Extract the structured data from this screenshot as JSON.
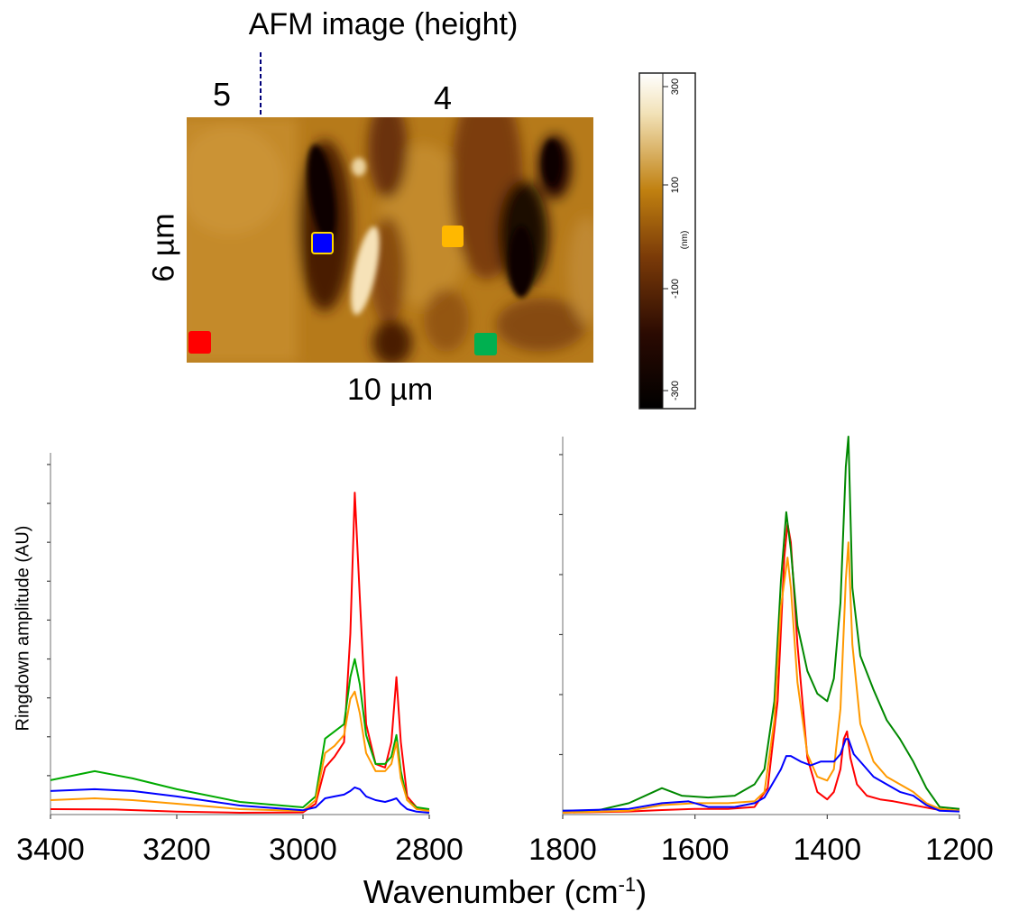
{
  "afm": {
    "title": "AFM image (height)",
    "region_left": "5",
    "region_right": "4",
    "width_label": "10 µm",
    "height_label": "6 µm",
    "markers": [
      {
        "name": "blue-marker",
        "color": "#0000ff",
        "outline": "#ffd700"
      },
      {
        "name": "orange-marker",
        "color": "#ffb800",
        "outline": ""
      },
      {
        "name": "red-marker",
        "color": "#ff0000",
        "outline": ""
      },
      {
        "name": "green-marker",
        "color": "#00b050",
        "outline": ""
      }
    ]
  },
  "colorbar": {
    "ticks": [
      "300",
      "100",
      "-100",
      "-300"
    ],
    "unit": "(nm)"
  },
  "chart_data": [
    {
      "type": "line",
      "title": "",
      "xlabel": "Wavenumber (cm-1)",
      "ylabel": "Ringdown amplitude (AU)",
      "xlim": [
        3400,
        2800
      ],
      "ylim": [
        0,
        1.0
      ],
      "x_ticks": [
        "3400",
        "3200",
        "3000",
        "2800"
      ],
      "series": [
        {
          "color": "#ff0000",
          "points": [
            [
              3400,
              0.015
            ],
            [
              3300,
              0.014
            ],
            [
              3200,
              0.008
            ],
            [
              3100,
              0.005
            ],
            [
              3000,
              0.006
            ],
            [
              2980,
              0.03
            ],
            [
              2965,
              0.13
            ],
            [
              2950,
              0.16
            ],
            [
              2935,
              0.2
            ],
            [
              2925,
              0.5
            ],
            [
              2918,
              0.89
            ],
            [
              2910,
              0.6
            ],
            [
              2900,
              0.25
            ],
            [
              2885,
              0.14
            ],
            [
              2870,
              0.13
            ],
            [
              2860,
              0.2
            ],
            [
              2852,
              0.38
            ],
            [
              2845,
              0.2
            ],
            [
              2835,
              0.05
            ],
            [
              2820,
              0.02
            ],
            [
              2800,
              0.01
            ]
          ]
        },
        {
          "color": "#00aa00",
          "points": [
            [
              3400,
              0.095
            ],
            [
              3330,
              0.12
            ],
            [
              3270,
              0.1
            ],
            [
              3200,
              0.07
            ],
            [
              3100,
              0.035
            ],
            [
              3000,
              0.02
            ],
            [
              2980,
              0.05
            ],
            [
              2965,
              0.21
            ],
            [
              2950,
              0.23
            ],
            [
              2935,
              0.25
            ],
            [
              2925,
              0.38
            ],
            [
              2918,
              0.43
            ],
            [
              2910,
              0.36
            ],
            [
              2900,
              0.22
            ],
            [
              2885,
              0.14
            ],
            [
              2870,
              0.14
            ],
            [
              2860,
              0.16
            ],
            [
              2852,
              0.22
            ],
            [
              2845,
              0.12
            ],
            [
              2835,
              0.04
            ],
            [
              2820,
              0.02
            ],
            [
              2800,
              0.015
            ]
          ]
        },
        {
          "color": "#ff9900",
          "points": [
            [
              3400,
              0.04
            ],
            [
              3330,
              0.045
            ],
            [
              3270,
              0.04
            ],
            [
              3200,
              0.03
            ],
            [
              3100,
              0.015
            ],
            [
              3000,
              0.01
            ],
            [
              2980,
              0.04
            ],
            [
              2965,
              0.17
            ],
            [
              2950,
              0.19
            ],
            [
              2935,
              0.22
            ],
            [
              2925,
              0.32
            ],
            [
              2918,
              0.34
            ],
            [
              2910,
              0.28
            ],
            [
              2900,
              0.17
            ],
            [
              2885,
              0.12
            ],
            [
              2870,
              0.12
            ],
            [
              2860,
              0.14
            ],
            [
              2852,
              0.2
            ],
            [
              2845,
              0.1
            ],
            [
              2835,
              0.04
            ],
            [
              2820,
              0.015
            ],
            [
              2800,
              0.01
            ]
          ]
        },
        {
          "color": "#0000ff",
          "points": [
            [
              3400,
              0.065
            ],
            [
              3330,
              0.07
            ],
            [
              3270,
              0.065
            ],
            [
              3200,
              0.05
            ],
            [
              3100,
              0.025
            ],
            [
              3000,
              0.012
            ],
            [
              2980,
              0.02
            ],
            [
              2965,
              0.045
            ],
            [
              2950,
              0.05
            ],
            [
              2935,
              0.055
            ],
            [
              2925,
              0.065
            ],
            [
              2918,
              0.075
            ],
            [
              2910,
              0.07
            ],
            [
              2900,
              0.05
            ],
            [
              2885,
              0.04
            ],
            [
              2870,
              0.035
            ],
            [
              2860,
              0.04
            ],
            [
              2852,
              0.045
            ],
            [
              2845,
              0.03
            ],
            [
              2835,
              0.015
            ],
            [
              2820,
              0.008
            ],
            [
              2800,
              0.005
            ]
          ]
        }
      ]
    },
    {
      "type": "line",
      "title": "",
      "xlabel": "Wavenumber (cm-1)",
      "ylabel": "",
      "xlim": [
        1800,
        1200
      ],
      "ylim": [
        0,
        1.0
      ],
      "x_ticks": [
        "1800",
        "1600",
        "1400",
        "1200"
      ],
      "series": [
        {
          "color": "#ff0000",
          "points": [
            [
              1800,
              0.005
            ],
            [
              1700,
              0.008
            ],
            [
              1650,
              0.012
            ],
            [
              1600,
              0.015
            ],
            [
              1550,
              0.015
            ],
            [
              1510,
              0.02
            ],
            [
              1490,
              0.07
            ],
            [
              1475,
              0.3
            ],
            [
              1465,
              0.68
            ],
            [
              1460,
              0.77
            ],
            [
              1455,
              0.72
            ],
            [
              1445,
              0.45
            ],
            [
              1430,
              0.15
            ],
            [
              1415,
              0.06
            ],
            [
              1400,
              0.04
            ],
            [
              1390,
              0.06
            ],
            [
              1380,
              0.12
            ],
            [
              1375,
              0.2
            ],
            [
              1370,
              0.22
            ],
            [
              1365,
              0.15
            ],
            [
              1355,
              0.08
            ],
            [
              1340,
              0.05
            ],
            [
              1320,
              0.04
            ],
            [
              1300,
              0.035
            ],
            [
              1270,
              0.025
            ],
            [
              1240,
              0.015
            ],
            [
              1220,
              0.01
            ],
            [
              1200,
              0.01
            ]
          ]
        },
        {
          "color": "#008800",
          "points": [
            [
              1800,
              0.01
            ],
            [
              1750,
              0.01
            ],
            [
              1700,
              0.03
            ],
            [
              1650,
              0.07
            ],
            [
              1620,
              0.05
            ],
            [
              1580,
              0.045
            ],
            [
              1540,
              0.05
            ],
            [
              1510,
              0.08
            ],
            [
              1495,
              0.12
            ],
            [
              1480,
              0.3
            ],
            [
              1470,
              0.62
            ],
            [
              1462,
              0.8
            ],
            [
              1455,
              0.7
            ],
            [
              1445,
              0.5
            ],
            [
              1430,
              0.38
            ],
            [
              1415,
              0.32
            ],
            [
              1400,
              0.3
            ],
            [
              1390,
              0.36
            ],
            [
              1380,
              0.56
            ],
            [
              1372,
              0.92
            ],
            [
              1368,
              1.0
            ],
            [
              1362,
              0.6
            ],
            [
              1350,
              0.42
            ],
            [
              1330,
              0.33
            ],
            [
              1310,
              0.25
            ],
            [
              1290,
              0.2
            ],
            [
              1270,
              0.14
            ],
            [
              1250,
              0.07
            ],
            [
              1230,
              0.02
            ],
            [
              1200,
              0.015
            ]
          ]
        },
        {
          "color": "#ff9900",
          "points": [
            [
              1800,
              0.005
            ],
            [
              1700,
              0.01
            ],
            [
              1650,
              0.025
            ],
            [
              1600,
              0.03
            ],
            [
              1550,
              0.03
            ],
            [
              1510,
              0.035
            ],
            [
              1495,
              0.06
            ],
            [
              1480,
              0.25
            ],
            [
              1470,
              0.55
            ],
            [
              1460,
              0.68
            ],
            [
              1455,
              0.6
            ],
            [
              1445,
              0.35
            ],
            [
              1430,
              0.16
            ],
            [
              1415,
              0.1
            ],
            [
              1400,
              0.09
            ],
            [
              1390,
              0.12
            ],
            [
              1380,
              0.28
            ],
            [
              1372,
              0.62
            ],
            [
              1368,
              0.72
            ],
            [
              1362,
              0.45
            ],
            [
              1350,
              0.24
            ],
            [
              1330,
              0.14
            ],
            [
              1310,
              0.1
            ],
            [
              1290,
              0.08
            ],
            [
              1270,
              0.06
            ],
            [
              1250,
              0.03
            ],
            [
              1230,
              0.015
            ],
            [
              1200,
              0.01
            ]
          ]
        },
        {
          "color": "#0000ff",
          "points": [
            [
              1800,
              0.01
            ],
            [
              1700,
              0.015
            ],
            [
              1650,
              0.03
            ],
            [
              1610,
              0.035
            ],
            [
              1580,
              0.02
            ],
            [
              1540,
              0.02
            ],
            [
              1510,
              0.03
            ],
            [
              1495,
              0.045
            ],
            [
              1480,
              0.09
            ],
            [
              1470,
              0.12
            ],
            [
              1462,
              0.155
            ],
            [
              1455,
              0.155
            ],
            [
              1440,
              0.14
            ],
            [
              1425,
              0.13
            ],
            [
              1410,
              0.14
            ],
            [
              1400,
              0.14
            ],
            [
              1390,
              0.14
            ],
            [
              1380,
              0.16
            ],
            [
              1372,
              0.2
            ],
            [
              1368,
              0.2
            ],
            [
              1360,
              0.16
            ],
            [
              1345,
              0.13
            ],
            [
              1330,
              0.1
            ],
            [
              1310,
              0.08
            ],
            [
              1290,
              0.06
            ],
            [
              1270,
              0.05
            ],
            [
              1250,
              0.025
            ],
            [
              1230,
              0.01
            ],
            [
              1200,
              0.008
            ]
          ]
        }
      ]
    }
  ]
}
